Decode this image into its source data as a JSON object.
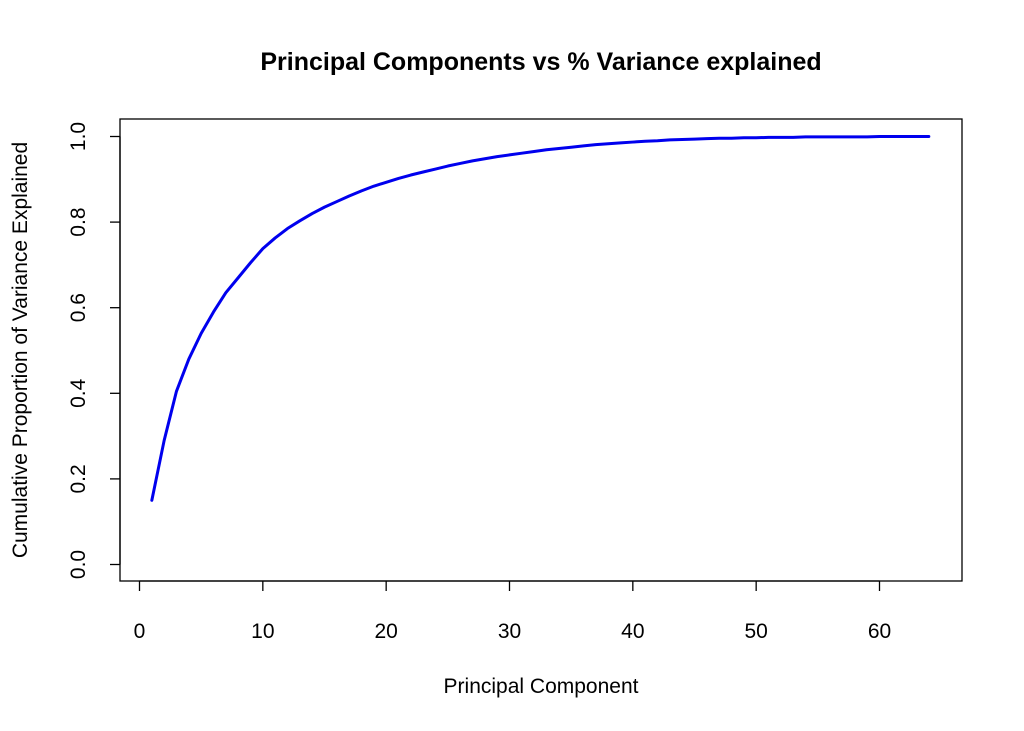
{
  "chart_data": {
    "type": "line",
    "title": "Principal Components vs % Variance explained",
    "xlabel": "Principal Component",
    "ylabel": "Cumulative Proportion of Variance Explained",
    "xlim": [
      0,
      66
    ],
    "ylim": [
      0,
      1.0
    ],
    "xticks": [
      "0",
      "10",
      "20",
      "30",
      "40",
      "50",
      "60"
    ],
    "yticks": [
      "0.0",
      "0.2",
      "0.4",
      "0.6",
      "0.8",
      "1.0"
    ],
    "grid": false,
    "line_color": "#0000ee",
    "series": [
      {
        "x": [
          1,
          2,
          3,
          4,
          5,
          6,
          7,
          8,
          9,
          10,
          11,
          12,
          13,
          14,
          15,
          16,
          17,
          18,
          19,
          20,
          21,
          22,
          23,
          24,
          25,
          26,
          27,
          28,
          29,
          30,
          31,
          32,
          33,
          34,
          35,
          36,
          37,
          38,
          39,
          40,
          41,
          42,
          43,
          44,
          45,
          46,
          47,
          48,
          49,
          50,
          51,
          52,
          53,
          54,
          55,
          56,
          57,
          58,
          59,
          60,
          61,
          62,
          63,
          64
        ],
        "values": [
          0.15,
          0.29,
          0.405,
          0.48,
          0.54,
          0.59,
          0.635,
          0.67,
          0.705,
          0.738,
          0.763,
          0.785,
          0.803,
          0.82,
          0.835,
          0.848,
          0.861,
          0.873,
          0.884,
          0.893,
          0.902,
          0.91,
          0.917,
          0.924,
          0.931,
          0.937,
          0.943,
          0.948,
          0.953,
          0.957,
          0.961,
          0.965,
          0.969,
          0.972,
          0.975,
          0.978,
          0.981,
          0.983,
          0.985,
          0.987,
          0.989,
          0.99,
          0.992,
          0.993,
          0.994,
          0.995,
          0.996,
          0.996,
          0.997,
          0.997,
          0.998,
          0.998,
          0.998,
          0.999,
          0.999,
          0.999,
          0.999,
          0.999,
          0.999,
          1.0,
          1.0,
          1.0,
          1.0,
          1.0
        ]
      }
    ]
  }
}
